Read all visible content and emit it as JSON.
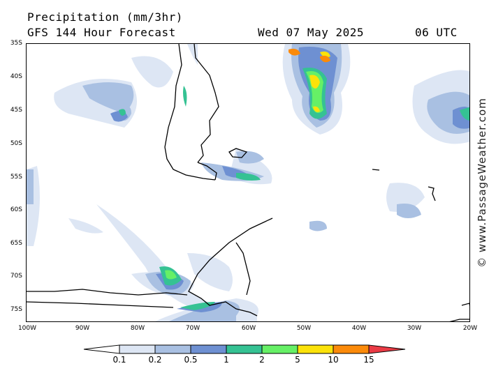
{
  "header": {
    "title": "Precipitation (mm/3hr)",
    "subtitle": "GFS 144 Hour Forecast",
    "date": "Wed 07 May 2025",
    "time": "06 UTC"
  },
  "watermark": "© www.PassageWeather.com",
  "map": {
    "lat_labels": [
      "35S",
      "40S",
      "45S",
      "50S",
      "55S",
      "60S",
      "65S",
      "70S",
      "75S"
    ],
    "lon_labels": [
      "100W",
      "90W",
      "80W",
      "70W",
      "60W",
      "50W",
      "40W",
      "30W",
      "20W"
    ],
    "land_outline_color": "#000000"
  },
  "legend": {
    "labels": [
      "0.1",
      "0.2",
      "0.5",
      "1",
      "2",
      "5",
      "10",
      "15"
    ],
    "colors": [
      "#ffffff",
      "#dde6f4",
      "#a9c0e2",
      "#6e90d2",
      "#35c293",
      "#66f066",
      "#fbe20a",
      "#fb8a0a",
      "#ea3b45"
    ]
  }
}
